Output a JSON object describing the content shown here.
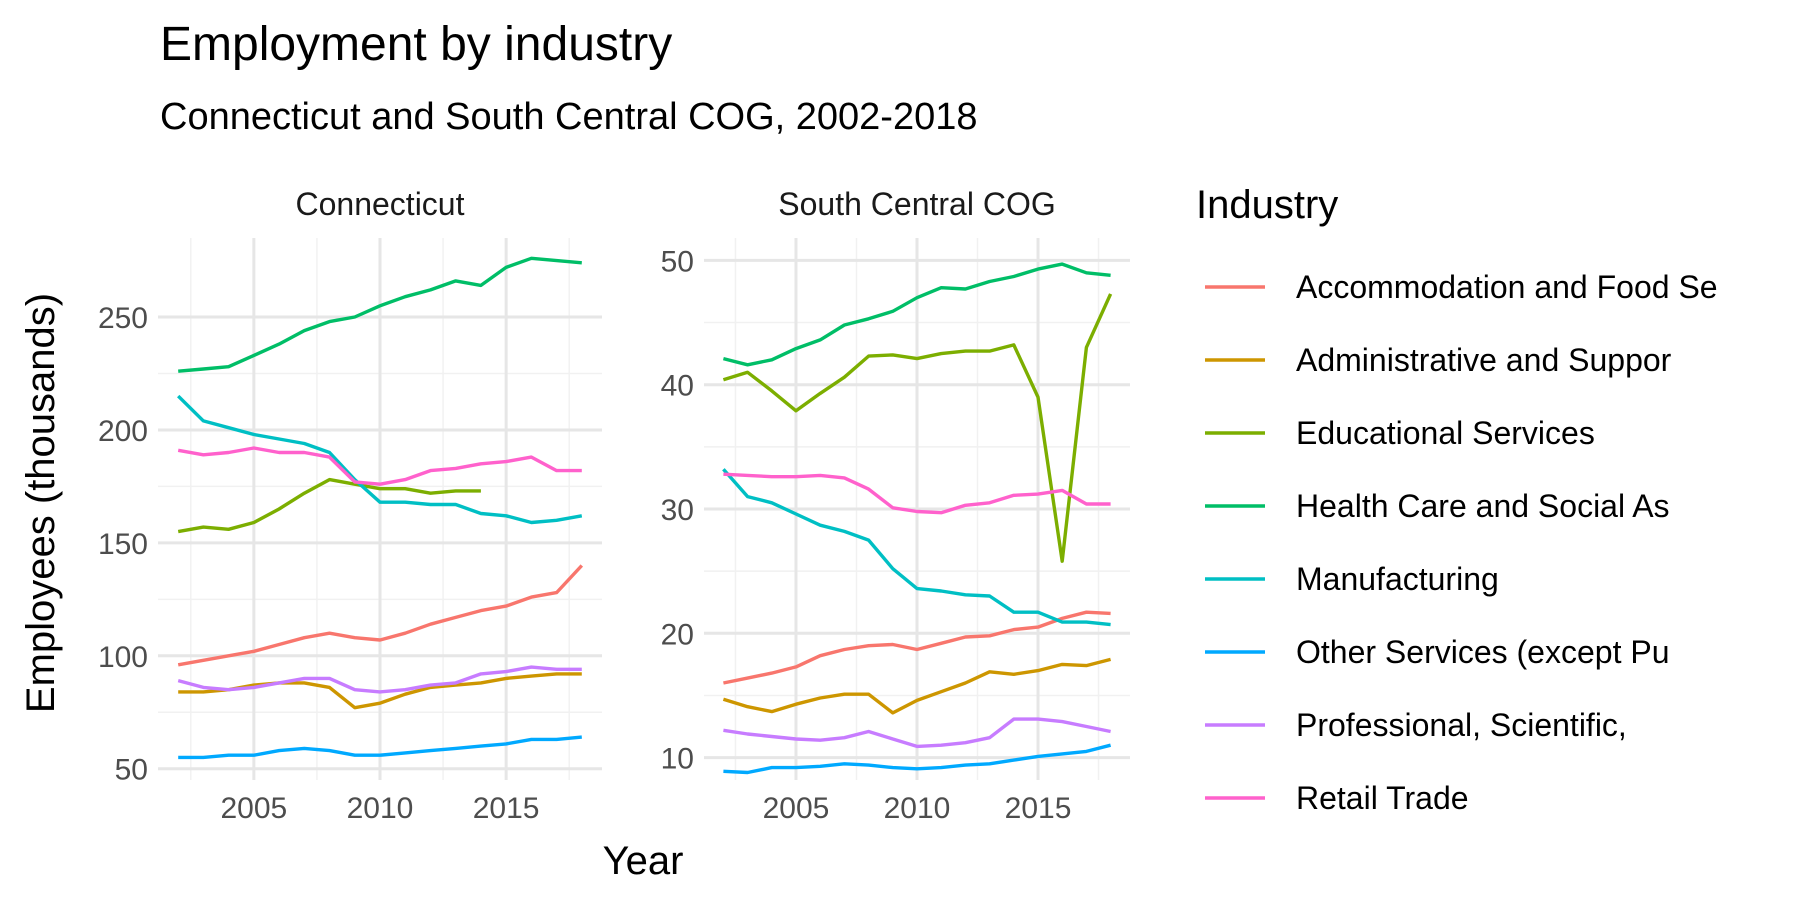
{
  "chart_data": {
    "type": "line",
    "title": "Employment by industry",
    "subtitle": "Connecticut and South Central COG, 2002-2018",
    "xlabel": "Year",
    "ylabel": "Employees (thousands)",
    "legend_title": "Industry",
    "legend_position": "right",
    "grid": true,
    "x": [
      2002,
      2003,
      2004,
      2005,
      2006,
      2007,
      2008,
      2009,
      2010,
      2011,
      2012,
      2013,
      2014,
      2015,
      2016,
      2017,
      2018
    ],
    "xlim": [
      2001.2,
      2018.8
    ],
    "x_ticks": [
      "2005",
      "2010",
      "2015"
    ],
    "series_legend": [
      {
        "name": "Accommodation and Food Se",
        "color": "#F8766D"
      },
      {
        "name": "Administrative and Suppor",
        "color": "#CD9600"
      },
      {
        "name": "Educational Services",
        "color": "#7CAE00"
      },
      {
        "name": "Health Care and Social As",
        "color": "#00BE67"
      },
      {
        "name": "Manufacturing",
        "color": "#00BFC4"
      },
      {
        "name": "Other Services (except Pu",
        "color": "#00A9FF"
      },
      {
        "name": "Professional, Scientific,",
        "color": "#C77CFF"
      },
      {
        "name": "Retail Trade",
        "color": "#FF61CC"
      }
    ],
    "panels": [
      {
        "title": "Connecticut",
        "ylim": [
          45,
          285
        ],
        "y_ticks": [
          50,
          100,
          150,
          200,
          250
        ],
        "y_tick_labels": [
          "50",
          "100",
          "150",
          "200",
          "250"
        ],
        "series": [
          {
            "values": [
              96,
              98,
              100,
              102,
              105,
              108,
              110,
              108,
              107,
              110,
              114,
              117,
              120,
              122,
              126,
              128,
              140
            ]
          },
          {
            "values": [
              84,
              84,
              85,
              87,
              88,
              88,
              86,
              77,
              79,
              83,
              86,
              87,
              88,
              90,
              91,
              92,
              92
            ]
          },
          {
            "values": [
              155,
              157,
              156,
              159,
              165,
              172,
              178,
              176,
              174,
              174,
              172,
              173,
              173,
              null,
              null,
              null,
              null
            ]
          },
          {
            "values": [
              226,
              227,
              228,
              233,
              238,
              244,
              248,
              250,
              255,
              259,
              262,
              266,
              264,
              272,
              276,
              275,
              274
            ]
          },
          {
            "values": [
              215,
              204,
              201,
              198,
              196,
              194,
              190,
              178,
              168,
              168,
              167,
              167,
              163,
              162,
              159,
              160,
              162
            ]
          },
          {
            "values": [
              55,
              55,
              56,
              56,
              58,
              59,
              58,
              56,
              56,
              57,
              58,
              59,
              60,
              61,
              63,
              63,
              64
            ]
          },
          {
            "values": [
              89,
              86,
              85,
              86,
              88,
              90,
              90,
              85,
              84,
              85,
              87,
              88,
              92,
              93,
              95,
              94,
              94
            ]
          },
          {
            "values": [
              191,
              189,
              190,
              192,
              190,
              190,
              188,
              177,
              176,
              178,
              182,
              183,
              185,
              186,
              188,
              182,
              182
            ]
          }
        ]
      },
      {
        "title": "South Central COG",
        "ylim": [
          8.2,
          51.8
        ],
        "y_ticks": [
          10,
          20,
          30,
          40,
          50
        ],
        "y_tick_labels": [
          "10",
          "20",
          "30",
          "40",
          "50"
        ],
        "series": [
          {
            "values": [
              16.0,
              16.4,
              16.8,
              17.3,
              18.2,
              18.7,
              19.0,
              19.1,
              18.7,
              19.2,
              19.7,
              19.8,
              20.3,
              20.5,
              21.2,
              21.7,
              21.6
            ]
          },
          {
            "values": [
              14.7,
              14.1,
              13.7,
              14.3,
              14.8,
              15.1,
              15.1,
              13.6,
              14.6,
              15.3,
              16.0,
              16.9,
              16.7,
              17.0,
              17.5,
              17.4,
              17.9
            ]
          },
          {
            "values": [
              40.4,
              41.0,
              39.5,
              37.9,
              39.3,
              40.6,
              42.3,
              42.4,
              42.1,
              42.5,
              42.7,
              42.7,
              43.2,
              39.0,
              25.8,
              43.0,
              47.3
            ]
          },
          {
            "values": [
              42.1,
              41.6,
              42.0,
              42.9,
              43.6,
              44.8,
              45.3,
              45.9,
              47.0,
              47.8,
              47.7,
              48.3,
              48.7,
              49.3,
              49.7,
              49.0,
              48.8
            ]
          },
          {
            "values": [
              33.2,
              31.0,
              30.5,
              29.6,
              28.7,
              28.2,
              27.5,
              25.2,
              23.6,
              23.4,
              23.1,
              23.0,
              21.7,
              21.7,
              20.9,
              20.9,
              20.7
            ]
          },
          {
            "values": [
              8.9,
              8.8,
              9.2,
              9.2,
              9.3,
              9.5,
              9.4,
              9.2,
              9.1,
              9.2,
              9.4,
              9.5,
              9.8,
              10.1,
              10.3,
              10.5,
              11.0
            ]
          },
          {
            "values": [
              12.2,
              11.9,
              11.7,
              11.5,
              11.4,
              11.6,
              12.1,
              11.5,
              10.9,
              11.0,
              11.2,
              11.6,
              13.1,
              13.1,
              12.9,
              12.5,
              12.1
            ]
          },
          {
            "values": [
              32.8,
              32.7,
              32.6,
              32.6,
              32.7,
              32.5,
              31.6,
              30.1,
              29.8,
              29.7,
              30.3,
              30.5,
              31.1,
              31.2,
              31.5,
              30.4,
              30.4
            ]
          }
        ]
      }
    ]
  }
}
